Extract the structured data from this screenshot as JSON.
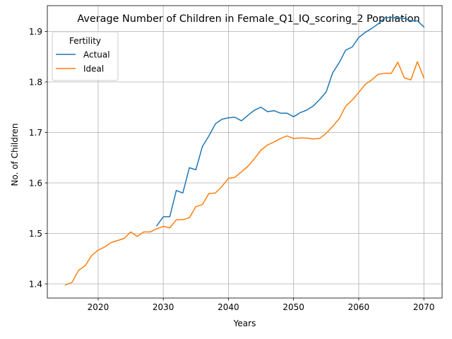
{
  "chart_data": {
    "type": "line",
    "title": "Average Number of Children in Female_Q1_IQ_scoring_2 Population",
    "xlabel": "Years",
    "ylabel": "No. of Children",
    "xlim": [
      2012.2,
      2072.8
    ],
    "ylim": [
      1.372,
      1.951
    ],
    "xticks": [
      2020,
      2030,
      2040,
      2050,
      2060,
      2070
    ],
    "xtick_labels": [
      "2020",
      "2030",
      "2040",
      "2050",
      "2060",
      "2070"
    ],
    "yticks": [
      1.4,
      1.5,
      1.6,
      1.7,
      1.8,
      1.9
    ],
    "ytick_labels": [
      "1.4",
      "1.5",
      "1.6",
      "1.7",
      "1.8",
      "1.9"
    ],
    "grid": true,
    "legend": {
      "title": "Fertility",
      "position": "top-left"
    },
    "series": [
      {
        "name": "Actual",
        "color": "#1f77b4",
        "x": [
          2029,
          2030,
          2031,
          2032,
          2033,
          2034,
          2035,
          2036,
          2037,
          2038,
          2039,
          2040,
          2041,
          2042,
          2043,
          2044,
          2045,
          2046,
          2047,
          2048,
          2049,
          2050,
          2051,
          2052,
          2053,
          2054,
          2055,
          2056,
          2057,
          2058,
          2059,
          2060,
          2061,
          2062,
          2063,
          2064,
          2065,
          2066,
          2067,
          2068,
          2069,
          2070
        ],
        "y": [
          1.515,
          1.533,
          1.533,
          1.585,
          1.58,
          1.63,
          1.626,
          1.672,
          1.693,
          1.717,
          1.726,
          1.729,
          1.73,
          1.723,
          1.734,
          1.744,
          1.75,
          1.741,
          1.743,
          1.738,
          1.738,
          1.731,
          1.739,
          1.744,
          1.752,
          1.765,
          1.78,
          1.818,
          1.838,
          1.863,
          1.869,
          1.888,
          1.898,
          1.906,
          1.915,
          1.927,
          1.928,
          1.926,
          1.926,
          1.921,
          1.921,
          1.909
        ]
      },
      {
        "name": "Ideal",
        "color": "#ff7f0e",
        "x": [
          2015,
          2016,
          2017,
          2018,
          2019,
          2020,
          2021,
          2022,
          2023,
          2024,
          2025,
          2026,
          2027,
          2028,
          2029,
          2030,
          2031,
          2032,
          2033,
          2034,
          2035,
          2036,
          2037,
          2038,
          2039,
          2040,
          2041,
          2042,
          2043,
          2044,
          2045,
          2046,
          2047,
          2048,
          2049,
          2050,
          2051,
          2052,
          2053,
          2054,
          2055,
          2056,
          2057,
          2058,
          2059,
          2060,
          2061,
          2062,
          2063,
          2064,
          2065,
          2066,
          2067,
          2068,
          2069,
          2070
        ],
        "y": [
          1.398,
          1.403,
          1.427,
          1.436,
          1.456,
          1.467,
          1.473,
          1.482,
          1.486,
          1.49,
          1.503,
          1.494,
          1.503,
          1.503,
          1.509,
          1.514,
          1.511,
          1.527,
          1.527,
          1.531,
          1.553,
          1.557,
          1.579,
          1.58,
          1.593,
          1.609,
          1.611,
          1.622,
          1.633,
          1.648,
          1.665,
          1.675,
          1.681,
          1.688,
          1.693,
          1.688,
          1.689,
          1.689,
          1.687,
          1.688,
          1.698,
          1.712,
          1.727,
          1.752,
          1.764,
          1.779,
          1.795,
          1.804,
          1.815,
          1.817,
          1.817,
          1.839,
          1.808,
          1.804,
          1.84,
          1.808
        ]
      }
    ]
  }
}
